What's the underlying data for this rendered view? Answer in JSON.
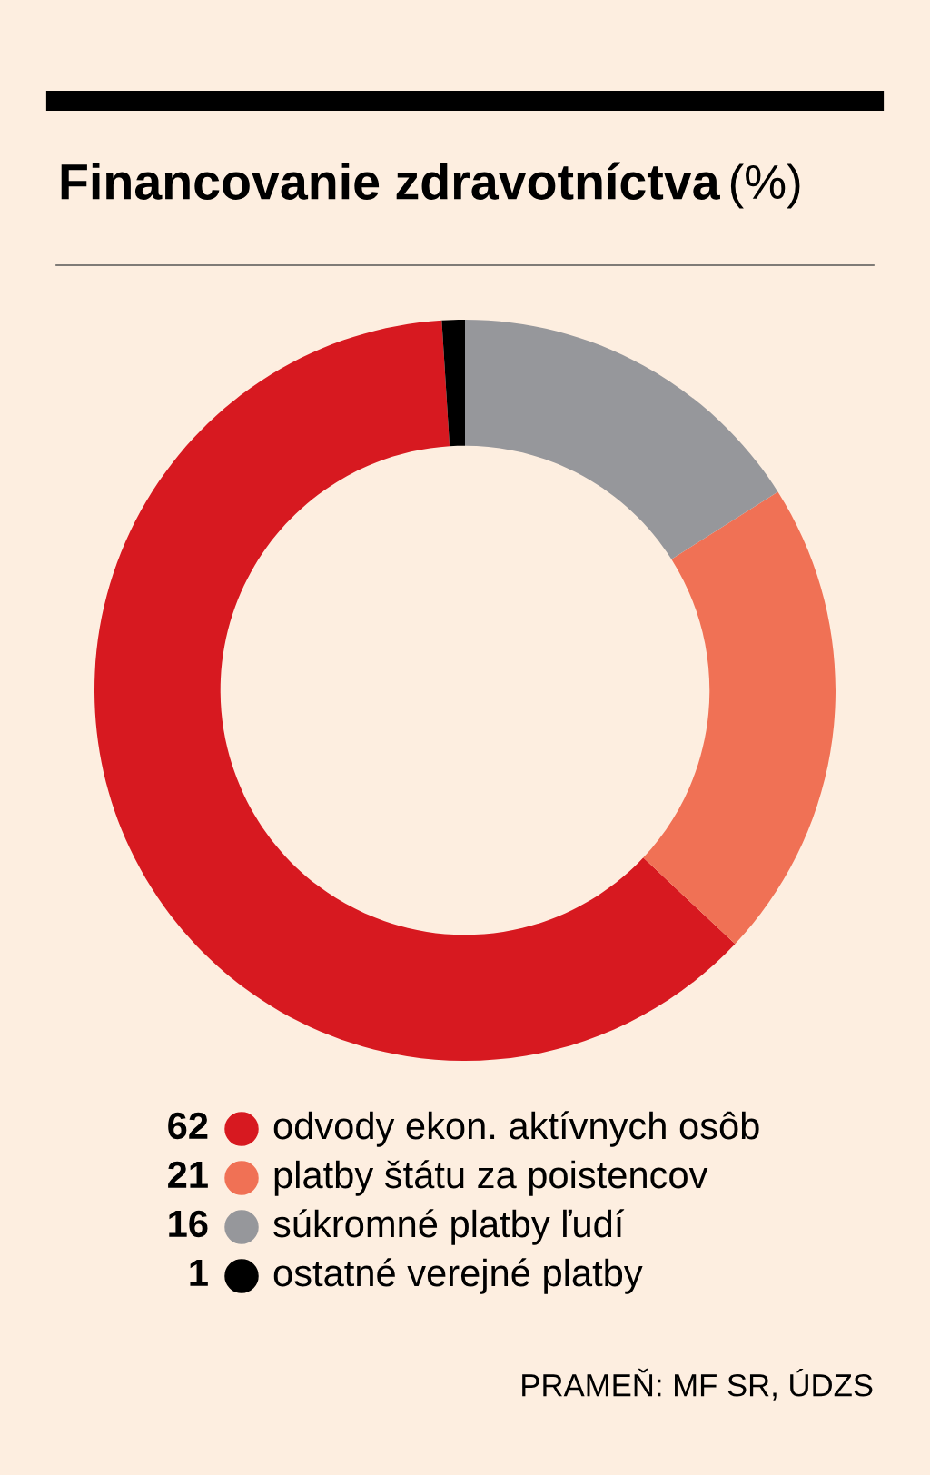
{
  "chart_data": {
    "type": "donut",
    "title": "Financovanie zdravotníctva",
    "subtitle": "(%)",
    "categories": [
      "odvody ekon. aktívnych osôb",
      "platby štátu za poistencov",
      "súkromné platby ľudí",
      "ostatné verejné platby"
    ],
    "values": [
      62,
      21,
      16,
      1
    ],
    "colors": [
      "#d71920",
      "#f07155",
      "#96979b",
      "#000000"
    ],
    "data_labels": true,
    "legend": "bottom",
    "annotations": [
      "PRAMEŇ: MF SR, ÚDZS"
    ]
  }
}
